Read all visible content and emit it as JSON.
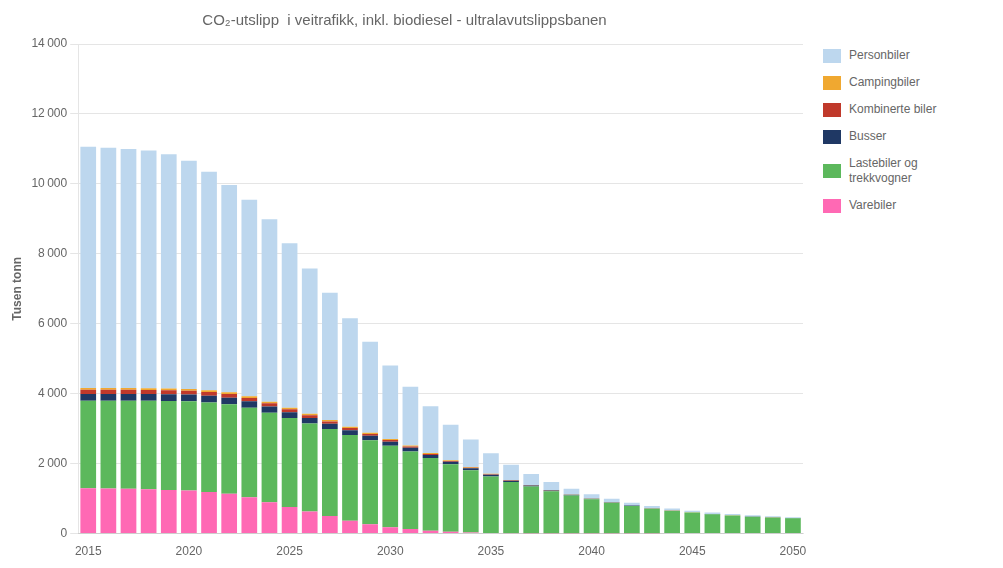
{
  "chart_data": {
    "type": "bar",
    "stacked": true,
    "title": "CO₂-utslipp  i veitrafikk, inkl. biodiesel - ultralavutslippsbanen",
    "ylabel": "Tusen tonn",
    "categories": [
      "2015",
      null,
      null,
      null,
      null,
      "2020",
      null,
      null,
      null,
      null,
      "2025",
      null,
      null,
      null,
      null,
      "2030",
      null,
      null,
      null,
      null,
      "2035",
      null,
      null,
      null,
      null,
      "2040",
      null,
      null,
      null,
      null,
      "2045",
      null,
      null,
      null,
      null,
      "2050"
    ],
    "series": [
      {
        "name": "Varebiler",
        "color": "#FF69B4",
        "values": [
          1300,
          1290,
          1280,
          1270,
          1250,
          1230,
          1190,
          1140,
          1040,
          900,
          760,
          630,
          500,
          370,
          270,
          180,
          130,
          80,
          50,
          30,
          15,
          8,
          5,
          3,
          2,
          1,
          1,
          1,
          1,
          0,
          0,
          0,
          0,
          0,
          0,
          0
        ]
      },
      {
        "name": "Lastebiler og\ntrekkvogner",
        "color": "#5CB85C",
        "values": [
          2500,
          2510,
          2520,
          2530,
          2545,
          2555,
          2560,
          2560,
          2560,
          2555,
          2545,
          2520,
          2490,
          2450,
          2400,
          2330,
          2220,
          2080,
          1930,
          1780,
          1620,
          1470,
          1340,
          1210,
          1090,
          980,
          880,
          790,
          710,
          650,
          600,
          555,
          515,
          485,
          460,
          440
        ]
      },
      {
        "name": "Busser",
        "color": "#1F3864",
        "values": [
          190,
          190,
          192,
          192,
          193,
          193,
          192,
          188,
          183,
          177,
          168,
          158,
          148,
          137,
          127,
          117,
          102,
          87,
          72,
          57,
          46,
          36,
          28,
          22,
          17,
          13,
          11,
          9,
          7,
          6,
          5,
          5,
          4,
          4,
          3,
          3
        ]
      },
      {
        "name": "Kombinerte biler",
        "color": "#C0392B",
        "values": [
          120,
          120,
          118,
          116,
          113,
          110,
          107,
          102,
          97,
          92,
          84,
          76,
          68,
          61,
          53,
          46,
          39,
          31,
          24,
          18,
          13,
          10,
          8,
          6,
          5,
          4,
          3,
          2,
          2,
          2,
          1,
          1,
          1,
          1,
          1,
          1
        ]
      },
      {
        "name": "Campingbiler",
        "color": "#F0A830",
        "values": [
          50,
          50,
          50,
          50,
          50,
          50,
          50,
          50,
          49,
          47,
          45,
          43,
          41,
          39,
          37,
          34,
          31,
          27,
          23,
          19,
          15,
          12,
          10,
          8,
          6,
          5,
          4,
          3,
          3,
          2,
          2,
          2,
          2,
          1,
          1,
          1
        ]
      },
      {
        "name": "Personbiler",
        "color": "#BDD7EE",
        "values": [
          6900,
          6870,
          6840,
          6800,
          6700,
          6520,
          6250,
          5930,
          5620,
          5220,
          4700,
          4150,
          3640,
          3100,
          2600,
          2100,
          1680,
          1340,
          1010,
          790,
          590,
          430,
          310,
          225,
          165,
          122,
          95,
          78,
          64,
          55,
          47,
          41,
          36,
          31,
          28,
          25
        ]
      }
    ],
    "ylim": [
      0,
      14000
    ],
    "yticks": [
      0,
      {
        "value": 2000,
        "label": "2 000"
      },
      {
        "value": 4000,
        "label": "4 000"
      },
      {
        "value": 6000,
        "label": "6 000"
      },
      {
        "value": 8000,
        "label": "8 000"
      },
      {
        "value": 10000,
        "label": "10 000"
      },
      {
        "value": 12000,
        "label": "12 000"
      },
      {
        "value": 14000,
        "label": "14 000"
      }
    ],
    "grid": true,
    "legend": "right"
  }
}
